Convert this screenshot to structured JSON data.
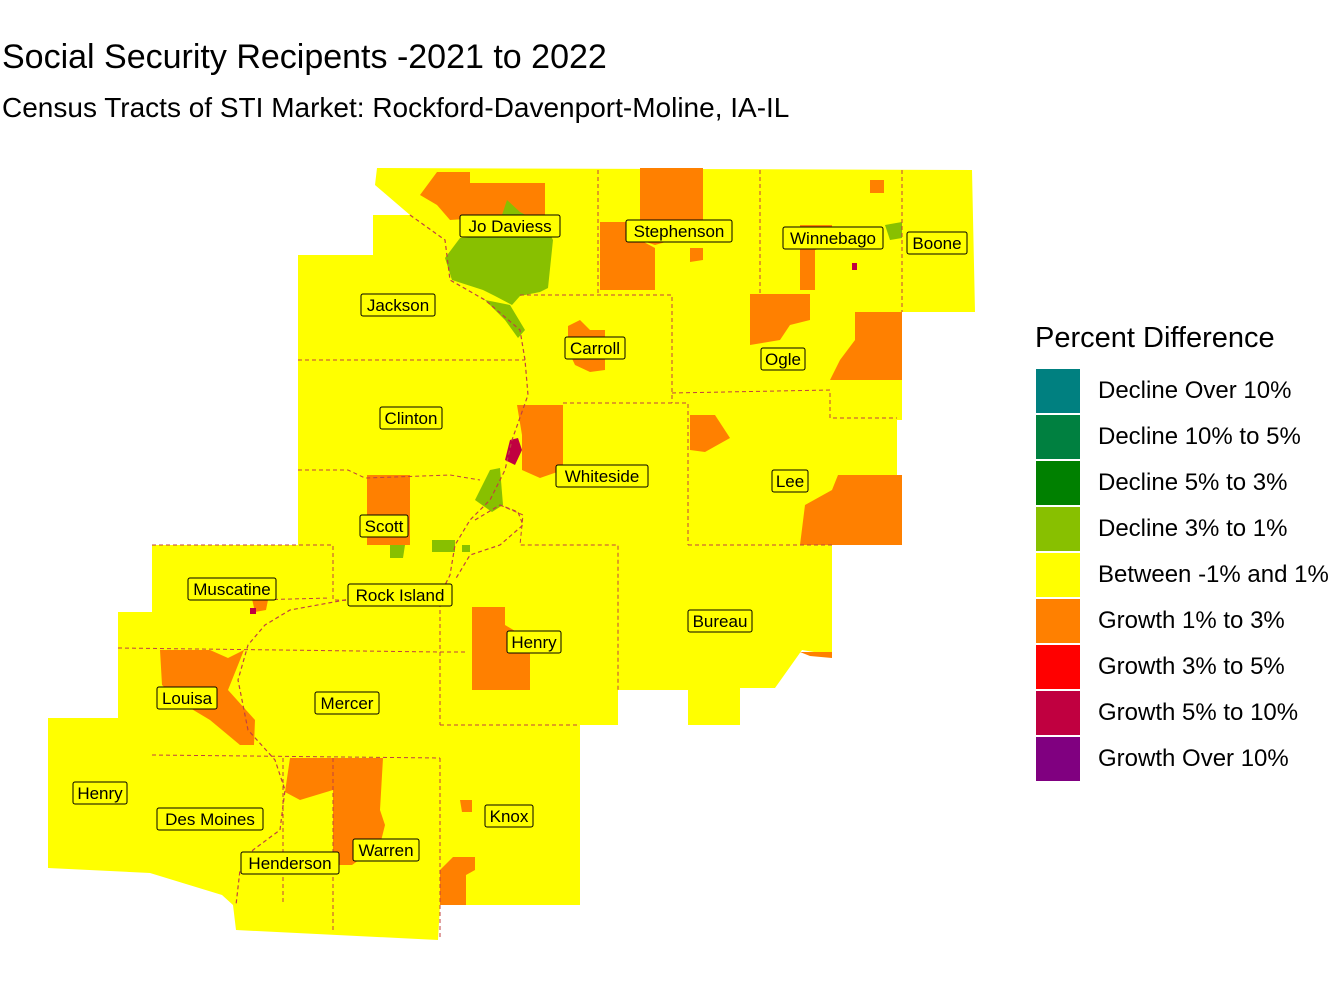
{
  "title": "Social Security Recipents -2021 to 2022",
  "subtitle": "Census Tracts of STI Market: Rockford-Davenport-Moline, IA-IL",
  "colors": {
    "base": "#ffff00",
    "growth_1_3": "#ff8000",
    "growth_5_10": "#c00040",
    "decline_3_1": "#88c000",
    "boundary": "#c04040"
  },
  "counties": [
    {
      "id": "jo-daviess",
      "name": "Jo Daviess"
    },
    {
      "id": "stephenson",
      "name": "Stephenson"
    },
    {
      "id": "winnebago",
      "name": "Winnebago"
    },
    {
      "id": "boone",
      "name": "Boone"
    },
    {
      "id": "jackson",
      "name": "Jackson"
    },
    {
      "id": "carroll",
      "name": "Carroll"
    },
    {
      "id": "ogle",
      "name": "Ogle"
    },
    {
      "id": "clinton",
      "name": "Clinton"
    },
    {
      "id": "whiteside",
      "name": "Whiteside"
    },
    {
      "id": "lee",
      "name": "Lee"
    },
    {
      "id": "scott",
      "name": "Scott"
    },
    {
      "id": "muscatine",
      "name": "Muscatine"
    },
    {
      "id": "rock-island",
      "name": "Rock Island"
    },
    {
      "id": "henry-il",
      "name": "Henry"
    },
    {
      "id": "bureau",
      "name": "Bureau"
    },
    {
      "id": "louisa",
      "name": "Louisa"
    },
    {
      "id": "mercer",
      "name": "Mercer"
    },
    {
      "id": "henry-ia",
      "name": "Henry"
    },
    {
      "id": "des-moines",
      "name": "Des Moines"
    },
    {
      "id": "knox",
      "name": "Knox"
    },
    {
      "id": "warren",
      "name": "Warren"
    },
    {
      "id": "henderson",
      "name": "Henderson"
    }
  ],
  "legend": {
    "title": "Percent Difference",
    "items": [
      {
        "label": "Decline Over 10%",
        "color": "#008080"
      },
      {
        "label": "Decline 10% to 5%",
        "color": "#008040"
      },
      {
        "label": "Decline 5% to 3%",
        "color": "#008000"
      },
      {
        "label": "Decline 3% to 1%",
        "color": "#88c000"
      },
      {
        "label": "Between -1% and 1%",
        "color": "#ffff00"
      },
      {
        "label": "Growth 1% to 3%",
        "color": "#ff8000"
      },
      {
        "label": "Growth 3% to 5%",
        "color": "#ff0000"
      },
      {
        "label": "Growth 5% to 10%",
        "color": "#c00040"
      },
      {
        "label": "Growth Over 10%",
        "color": "#800080"
      }
    ]
  }
}
